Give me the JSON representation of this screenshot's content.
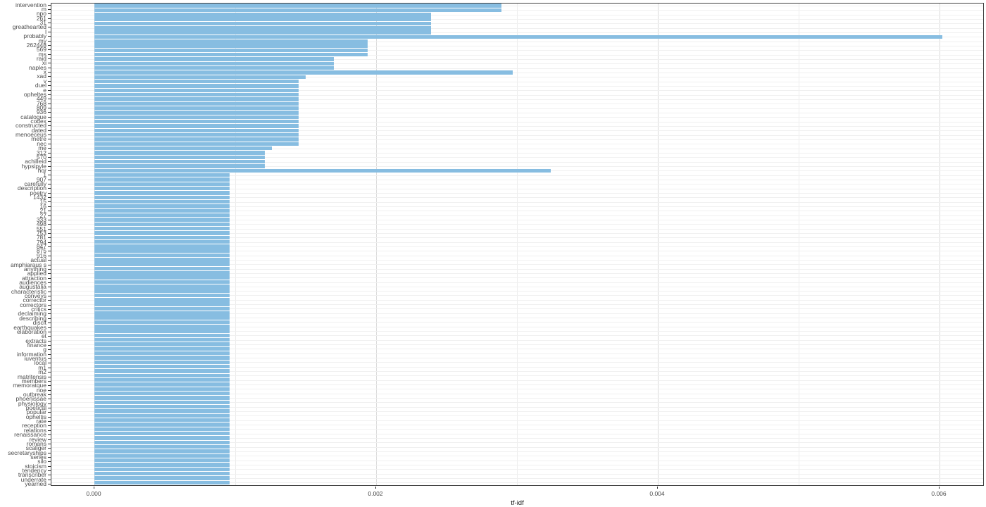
{
  "chart_data": {
    "type": "bar",
    "orientation": "horizontal",
    "title": "",
    "xlabel": "tf-idf",
    "ylabel": "",
    "legend": "none",
    "grid": "on",
    "bar_color": "#87BDE1",
    "xlim": [
      0,
      0.0063
    ],
    "x_ticks": [
      0,
      0.002,
      0.004,
      0.006
    ],
    "x_tick_labels": [
      "0.000",
      "0.002",
      "0.004",
      "0.006"
    ],
    "x_minor_ticks": [
      0.001,
      0.003,
      0.005
    ],
    "categories": [
      "intervention",
      "m",
      "npo",
      "261",
      "31",
      "greathearted",
      "l",
      "probably",
      "my",
      "262448",
      "569",
      "ms",
      "raid",
      "xi",
      "naples",
      "x",
      "xad",
      "v",
      "duel",
      "e",
      "opheltes",
      "449",
      "768",
      "809",
      "936",
      "catalogue",
      "codex",
      "constructed",
      "dated",
      "menoeceus",
      "metre",
      "nec",
      "me",
      "312",
      "570",
      "achilleid",
      "hypsipyle",
      "hor",
      "1",
      "907",
      "carefully",
      "description",
      "poetry",
      "1432",
      "15",
      "16",
      "21",
      "27",
      "333",
      "498",
      "551",
      "753",
      "781",
      "794",
      "847",
      "875",
      "916",
      "actual",
      "amphiaraus s",
      "anything",
      "applied",
      "attraction",
      "audiences",
      "augustalia",
      "characteristic",
      "conveys",
      "corrector",
      "correctors",
      "critics",
      "declaiming",
      "describing",
      "discit",
      "earthquakes",
      "elaboration",
      "et",
      "extracts",
      "finance",
      "g",
      "information",
      "iuventus",
      "local",
      "m1",
      "m2",
      "matritensis",
      "members",
      "memoratque",
      "noe",
      "outbreak",
      "phoenissae",
      "physiology",
      "poetical",
      "popular",
      "opheltis",
      "rate",
      "reception",
      "relations",
      "renaissance",
      "review",
      "romans",
      "scaliger",
      "secretaryships",
      "series",
      "silo",
      "stoicism",
      "tendency",
      "transcriber",
      "underrate",
      "yearned"
    ],
    "values": [
      0.00289,
      0.00289,
      0.00239,
      0.00239,
      0.00239,
      0.00239,
      0.00239,
      0.00602,
      0.00194,
      0.00194,
      0.00194,
      0.00194,
      0.0017,
      0.0017,
      0.0017,
      0.00297,
      0.0015,
      0.00145,
      0.00145,
      0.00145,
      0.00145,
      0.00145,
      0.00145,
      0.00145,
      0.00145,
      0.00145,
      0.00145,
      0.00145,
      0.00145,
      0.00145,
      0.00145,
      0.00145,
      0.00126,
      0.00121,
      0.00121,
      0.00121,
      0.00121,
      0.00324,
      0.00096,
      0.00096,
      0.00096,
      0.00096,
      0.00096,
      0.00096,
      0.00096,
      0.00096,
      0.00096,
      0.00096,
      0.00096,
      0.00096,
      0.00096,
      0.00096,
      0.00096,
      0.00096,
      0.00096,
      0.00096,
      0.00096,
      0.00096,
      0.00096,
      0.00096,
      0.00096,
      0.00096,
      0.00096,
      0.00096,
      0.00096,
      0.00096,
      0.00096,
      0.00096,
      0.00096,
      0.00096,
      0.00096,
      0.00096,
      0.00096,
      0.00096,
      0.00096,
      0.00096,
      0.00096,
      0.00096,
      0.00096,
      0.00096,
      0.00096,
      0.00096,
      0.00096,
      0.00096,
      0.00096,
      0.00096,
      0.00096,
      0.00096,
      0.00096,
      0.00096,
      0.00096,
      0.00096,
      0.00096,
      0.00096,
      0.00096,
      0.00096,
      0.00096,
      0.00096,
      0.00096,
      0.00096,
      0.00096,
      0.00096,
      0.00096,
      0.00096,
      0.00096,
      0.00096,
      0.00096,
      0.00096
    ]
  }
}
